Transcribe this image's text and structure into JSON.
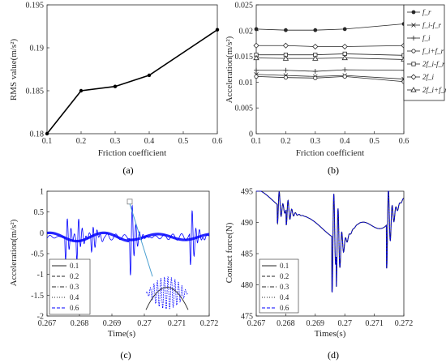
{
  "chart_data": [
    {
      "type": "line",
      "panel_label": "(a)",
      "xlabel": "Friction coefficient",
      "ylabel": "RMS value(m/s²)",
      "xlim": [
        0.1,
        0.6
      ],
      "ylim": [
        0.18,
        0.195
      ],
      "xticks": [
        "0.1",
        "0.2",
        "0.3",
        "0.4",
        "0.5",
        "0.6"
      ],
      "yticks": [
        "0.18",
        "0.185",
        "0.19",
        "0.195"
      ],
      "x": [
        0.1,
        0.2,
        0.3,
        0.4,
        0.6
      ],
      "series": [
        {
          "values": [
            0.18,
            0.185,
            0.1855,
            0.1868,
            0.1921
          ],
          "color": "#000000"
        }
      ],
      "grid": false
    },
    {
      "type": "line",
      "panel_label": "(b)",
      "xlabel": "Friction coefficient",
      "ylabel": "Acceleration(m/s²)",
      "xlim": [
        0.1,
        0.6
      ],
      "ylim": [
        0,
        0.025
      ],
      "xticks": [
        "0.1",
        "0.2",
        "0.3",
        "0.4",
        "0.5",
        "0.6"
      ],
      "yticks": [
        "0",
        "0.005",
        "0.01",
        "0.015",
        "0.02",
        "0.025"
      ],
      "x": [
        0.1,
        0.2,
        0.3,
        0.4,
        0.6
      ],
      "legend_position": "right",
      "series": [
        {
          "name": "f_r",
          "marker": "dot",
          "values": [
            0.0203,
            0.0201,
            0.0201,
            0.0203,
            0.0213
          ]
        },
        {
          "name": "f_i-f_r",
          "marker": "x",
          "values": [
            0.0115,
            0.0113,
            0.0111,
            0.0113,
            0.0106
          ]
        },
        {
          "name": "f_i",
          "marker": "plus",
          "values": [
            0.0123,
            0.0123,
            0.0121,
            0.0124,
            0.0123
          ]
        },
        {
          "name": "f_i+f_r",
          "marker": "circle",
          "values": [
            0.0111,
            0.0109,
            0.0108,
            0.0111,
            0.0101
          ]
        },
        {
          "name": "2f_i-f_r",
          "marker": "square",
          "values": [
            0.0153,
            0.0153,
            0.0153,
            0.0155,
            0.0152
          ]
        },
        {
          "name": "2f_i",
          "marker": "diamond",
          "values": [
            0.0171,
            0.0171,
            0.0169,
            0.0169,
            0.0171
          ]
        },
        {
          "name": "2f_i+f_r",
          "marker": "triangle",
          "values": [
            0.0147,
            0.0146,
            0.0146,
            0.0147,
            0.0144
          ]
        }
      ],
      "grid": false
    },
    {
      "type": "line",
      "panel_label": "(c)",
      "xlabel": "Time(s)",
      "ylabel": "Acceleration(m/s²)",
      "xlim": [
        0.267,
        0.272
      ],
      "ylim": [
        -2,
        1
      ],
      "xticks": [
        "0.267",
        "0.268",
        "0.269",
        "0.27",
        "0.271",
        "0.272"
      ],
      "yticks": [
        "1",
        "0.5",
        "0",
        "-0.5",
        "-1",
        "-1.5",
        "-2"
      ],
      "legend_position": "bottom-left",
      "series": [
        {
          "name": "0.1",
          "style": "solid"
        },
        {
          "name": "0.2",
          "style": "dashed"
        },
        {
          "name": "0.3",
          "style": "dashdot"
        },
        {
          "name": "0.4",
          "style": "dotted"
        },
        {
          "name": "0.6",
          "style": "dashed",
          "color": "#0000ff"
        }
      ],
      "grid": false
    },
    {
      "type": "line",
      "panel_label": "(d)",
      "xlabel": "Times(s)",
      "ylabel": "Contact force(N)",
      "xlim": [
        0.267,
        0.272
      ],
      "ylim": [
        475,
        495
      ],
      "xticks": [
        "0.267",
        "0.268",
        "0.269",
        "0.27",
        "0.271",
        "0.272"
      ],
      "yticks": [
        "495",
        "490",
        "485",
        "480",
        "475"
      ],
      "legend_position": "bottom-left",
      "series": [
        {
          "name": "0.1",
          "style": "solid"
        },
        {
          "name": "0.2",
          "style": "dashed"
        },
        {
          "name": "0.3",
          "style": "dashdot"
        },
        {
          "name": "0.4",
          "style": "dotted"
        },
        {
          "name": "0.6",
          "style": "dashed",
          "color": "#0000ff"
        }
      ],
      "grid": false
    }
  ]
}
